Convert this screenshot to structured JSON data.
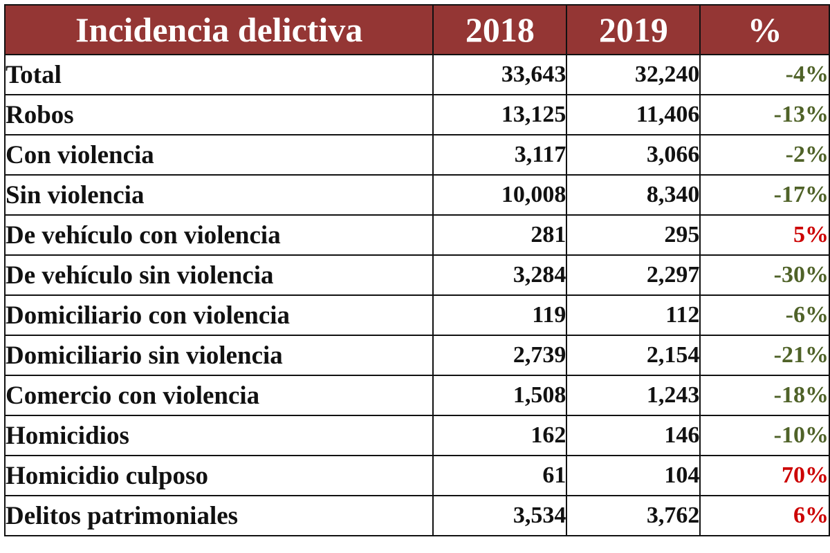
{
  "chart_data": {
    "type": "table",
    "columns": [
      "Incidencia delictiva",
      "2018",
      "2019",
      "%"
    ],
    "rows": [
      {
        "label": "Total",
        "y2018": "33,643",
        "y2019": "32,240",
        "pct": "-4%",
        "pct_color": "#4f6228"
      },
      {
        "label": "Robos",
        "y2018": "13,125",
        "y2019": "11,406",
        "pct": "-13%",
        "pct_color": "#4f6228"
      },
      {
        "label": "Con violencia",
        "y2018": "3,117",
        "y2019": "3,066",
        "pct": "-2%",
        "pct_color": "#4f6228"
      },
      {
        "label": "Sin violencia",
        "y2018": "10,008",
        "y2019": "8,340",
        "pct": "-17%",
        "pct_color": "#4f6228"
      },
      {
        "label": "De vehículo con violencia",
        "y2018": "281",
        "y2019": "295",
        "pct": "5%",
        "pct_color": "#cc0000"
      },
      {
        "label": "De vehículo sin violencia",
        "y2018": "3,284",
        "y2019": "2,297",
        "pct": "-30%",
        "pct_color": "#4f6228"
      },
      {
        "label": "Domiciliario con violencia",
        "y2018": "119",
        "y2019": "112",
        "pct": "-6%",
        "pct_color": "#4f6228"
      },
      {
        "label": "Domiciliario sin violencia",
        "y2018": "2,739",
        "y2019": "2,154",
        "pct": "-21%",
        "pct_color": "#4f6228"
      },
      {
        "label": "Comercio con violencia",
        "y2018": "1,508",
        "y2019": "1,243",
        "pct": "-18%",
        "pct_color": "#4f6228"
      },
      {
        "label": "Homicidios",
        "y2018": "162",
        "y2019": "146",
        "pct": "-10%",
        "pct_color": "#4f6228"
      },
      {
        "label": "Homicidio culposo",
        "y2018": "61",
        "y2019": "104",
        "pct": "70%",
        "pct_color": "#cc0000"
      },
      {
        "label": "Delitos patrimoniales",
        "y2018": "3,534",
        "y2019": "3,762",
        "pct": "6%",
        "pct_color": "#cc0000"
      }
    ],
    "header_color": "#943634"
  }
}
